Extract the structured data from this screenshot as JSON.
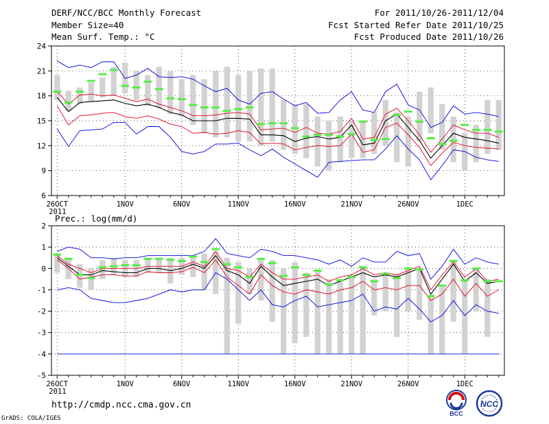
{
  "header": {
    "line1": "DERF/NCC/BCC Monthly Forecast",
    "line2": "Member Size=40",
    "line3": "Mean Surf. Temp.: °C",
    "right1": "For 2011/10/26-2011/12/04",
    "right2": "Fcst Started Refer Date 2011/10/25",
    "right3": "Fcst Produced Date 2011/10/26"
  },
  "footer": {
    "url": "http://cmdp.ncc.cma.gov.cn",
    "grads": "GrADS: COLA/IGES",
    "logo_bcc": "BCC",
    "logo_ncc": "NCC"
  },
  "colors": {
    "mean": "#000000",
    "spread": "#e0001c",
    "extreme": "#0000dd",
    "bar": "#d2d2d2",
    "marker": "#55ee44",
    "grid": "#000000"
  },
  "chart_data": [
    {
      "type": "ensemble",
      "title": "Mean Surf. Temp.: °C",
      "x_labels": [
        "26OCT\n2011",
        "1NOV",
        "6NOV",
        "11NOV",
        "16NOV",
        "21NOV",
        "26NOV",
        "1DEC"
      ],
      "x_label_days": [
        0,
        6,
        11,
        16,
        21,
        26,
        31,
        36
      ],
      "days": 40,
      "ylim": [
        6,
        24
      ],
      "yticks": [
        6,
        9,
        12,
        15,
        18,
        21,
        24
      ],
      "bars": [
        [
          17.5,
          20.5
        ],
        [
          16.2,
          18.6
        ],
        [
          17.0,
          19.0
        ],
        [
          17.3,
          19.6
        ],
        [
          17.8,
          20.2
        ],
        [
          18.0,
          21.5
        ],
        [
          18.3,
          22.0
        ],
        [
          17.5,
          21.0
        ],
        [
          16.8,
          20.5
        ],
        [
          16.5,
          21.5
        ],
        [
          15.8,
          21.0
        ],
        [
          15.5,
          20.0
        ],
        [
          14.5,
          20.5
        ],
        [
          13.5,
          20.0
        ],
        [
          13.0,
          21.0
        ],
        [
          13.0,
          21.5
        ],
        [
          12.5,
          20.5
        ],
        [
          12.5,
          21.0
        ],
        [
          12.0,
          21.3
        ],
        [
          12.5,
          21.3
        ],
        [
          11.5,
          17.5
        ],
        [
          11.0,
          17.0
        ],
        [
          10.5,
          17.0
        ],
        [
          9.5,
          15.5
        ],
        [
          9.0,
          15.0
        ],
        [
          10.0,
          15.5
        ],
        [
          10.5,
          15.0
        ],
        [
          10.5,
          15.0
        ],
        [
          11.0,
          16.0
        ],
        [
          12.0,
          17.5
        ],
        [
          10.0,
          16.0
        ],
        [
          9.5,
          15.5
        ],
        [
          12.5,
          18.5
        ],
        [
          13.5,
          19.0
        ],
        [
          11.5,
          17.0
        ],
        [
          10.0,
          15.5
        ],
        [
          9.0,
          13.5
        ],
        [
          10.0,
          14.5
        ],
        [
          11.0,
          17.5
        ],
        [
          11.5,
          17.5
        ]
      ],
      "markers": [
        18.5,
        17.2,
        18.5,
        19.8,
        20.6,
        21.1,
        19.2,
        19.0,
        19.7,
        18.8,
        17.7,
        17.6,
        16.9,
        16.6,
        16.6,
        16.2,
        16.4,
        16.6,
        14.6,
        14.7,
        14.7,
        14.1,
        13.1,
        13.3,
        13.3,
        13.1,
        13.4,
        14.9,
        12.7,
        12.8,
        15.7,
        16.1,
        14.9,
        12.9,
        12.2,
        12.6,
        14.5,
        13.9,
        13.9,
        13.7
      ],
      "series": [
        {
          "name": "ensemble mean",
          "color": "#000000",
          "values": [
            17.8,
            16.1,
            17.2,
            17.3,
            17.4,
            17.5,
            17.1,
            16.8,
            17.0,
            16.6,
            16.0,
            15.7,
            15.0,
            15.0,
            15.0,
            15.3,
            15.3,
            15.2,
            13.3,
            13.3,
            13.2,
            12.5,
            12.9,
            13.1,
            12.8,
            13.0,
            14.5,
            12.1,
            12.3,
            15.0,
            15.8,
            14.2,
            12.6,
            10.5,
            12.0,
            13.5,
            13.0,
            12.8,
            12.6,
            12.3
          ]
        },
        {
          "name": "upper spread",
          "color": "#e0001c",
          "values": [
            18.5,
            17.0,
            18.1,
            18.2,
            18.0,
            18.1,
            17.7,
            17.3,
            17.6,
            17.0,
            16.6,
            16.2,
            15.6,
            15.6,
            15.7,
            15.9,
            16.0,
            15.8,
            13.9,
            14.0,
            14.1,
            13.6,
            14.2,
            13.5,
            13.4,
            13.7,
            15.3,
            12.8,
            13.0,
            15.8,
            16.5,
            15.0,
            13.3,
            11.2,
            12.8,
            14.5,
            13.9,
            13.5,
            13.5,
            13.0
          ]
        },
        {
          "name": "lower spread",
          "color": "#e0001c",
          "values": [
            16.8,
            14.5,
            15.6,
            15.7,
            15.9,
            16.0,
            15.5,
            15.3,
            15.6,
            15.2,
            14.6,
            14.3,
            13.5,
            13.6,
            13.4,
            13.5,
            13.8,
            13.6,
            12.2,
            12.3,
            12.2,
            11.5,
            11.8,
            12.0,
            11.9,
            12.0,
            13.4,
            11.2,
            11.5,
            14.2,
            14.7,
            13.3,
            11.8,
            9.6,
            11.1,
            12.4,
            12.0,
            11.8,
            11.7,
            11.6
          ]
        },
        {
          "name": "maximum",
          "color": "#0000dd",
          "values": [
            22.2,
            21.4,
            21.7,
            21.4,
            22.1,
            22.1,
            20.1,
            20.5,
            21.3,
            20.3,
            20.2,
            20.3,
            20.0,
            19.2,
            18.5,
            18.9,
            17.5,
            17.0,
            18.3,
            18.5,
            17.6,
            16.8,
            17.2,
            15.9,
            16.0,
            17.5,
            18.5,
            16.3,
            16.0,
            18.5,
            19.4,
            16.9,
            16.3,
            14.2,
            14.8,
            16.8,
            15.8,
            16.0,
            15.8,
            15.5
          ]
        },
        {
          "name": "minimum",
          "color": "#0000dd",
          "values": [
            14.0,
            11.9,
            13.8,
            13.9,
            14.0,
            14.8,
            14.8,
            13.4,
            14.3,
            14.3,
            13.0,
            11.3,
            11.0,
            11.3,
            12.2,
            12.2,
            12.3,
            11.5,
            10.8,
            11.6,
            10.6,
            9.8,
            9.0,
            8.2,
            10.0,
            10.1,
            10.2,
            10.3,
            10.3,
            11.6,
            13.2,
            11.6,
            10.3,
            7.9,
            9.6,
            11.5,
            11.3,
            10.6,
            10.3,
            10.1
          ]
        }
      ]
    },
    {
      "type": "ensemble",
      "title": "Prec.: log(mm/d)",
      "x_labels": [
        "26OCT\n2011",
        "1NOV",
        "6NOV",
        "11NOV",
        "16NOV",
        "21NOV",
        "26NOV",
        "1DEC"
      ],
      "x_label_days": [
        0,
        6,
        11,
        16,
        21,
        26,
        31,
        36
      ],
      "days": 40,
      "ylim": [
        -5,
        2
      ],
      "yticks": [
        -5,
        -4,
        -3,
        -2,
        -1,
        0,
        1,
        2
      ],
      "bars": [
        [
          -0.2,
          0.6
        ],
        [
          -0.5,
          0.5
        ],
        [
          -0.9,
          0.2
        ],
        [
          -1.0,
          0.0
        ],
        [
          -0.5,
          0.4
        ],
        [
          -0.3,
          0.5
        ],
        [
          -0.4,
          0.4
        ],
        [
          -0.4,
          0.4
        ],
        [
          -0.2,
          0.5
        ],
        [
          -0.2,
          0.5
        ],
        [
          -0.7,
          0.5
        ],
        [
          -0.3,
          0.5
        ],
        [
          -0.4,
          0.5
        ],
        [
          -1.0,
          0.7
        ],
        [
          -1.2,
          0.8
        ],
        [
          -4.0,
          0.5
        ],
        [
          -2.6,
          0.3
        ],
        [
          -1.2,
          0.0
        ],
        [
          -1.5,
          0.4
        ],
        [
          -2.5,
          0.4
        ],
        [
          -4.0,
          0.0
        ],
        [
          -3.5,
          0.3
        ],
        [
          -3.2,
          -0.2
        ],
        [
          -4.0,
          -0.1
        ],
        [
          -4.0,
          -0.5
        ],
        [
          -4.0,
          -0.5
        ],
        [
          -4.0,
          -0.3
        ],
        [
          -4.0,
          0.1
        ],
        [
          -2.2,
          -0.5
        ],
        [
          -2.0,
          -0.2
        ],
        [
          -3.2,
          -0.3
        ],
        [
          -2.0,
          0.0
        ],
        [
          -2.4,
          -0.1
        ],
        [
          -4.0,
          -1.2
        ],
        [
          -4.0,
          -0.8
        ],
        [
          -2.5,
          0.4
        ],
        [
          -4.0,
          -0.5
        ],
        [
          -2.0,
          0.0
        ],
        [
          -3.2,
          -0.5
        ],
        [
          -4.0,
          -4.0
        ]
      ],
      "markers": [
        0.65,
        0.45,
        -0.3,
        -0.45,
        0.05,
        0.1,
        0.15,
        0.15,
        0.45,
        0.45,
        0.4,
        0.35,
        0.55,
        0.3,
        0.9,
        0.2,
        0.05,
        -0.4,
        0.45,
        0.25,
        -0.35,
        0.05,
        -0.3,
        -0.1,
        -0.75,
        -0.55,
        -0.4,
        0.05,
        -0.6,
        -0.25,
        -0.45,
        0.0,
        -0.05,
        -1.3,
        -0.8,
        0.35,
        -0.55,
        0.0,
        -0.6,
        -0.6
      ],
      "series": [
        {
          "name": "ensemble mean",
          "color": "#000000",
          "values": [
            0.5,
            0.1,
            -0.3,
            -0.3,
            -0.1,
            -0.15,
            -0.2,
            -0.2,
            0.0,
            0.0,
            -0.1,
            0.0,
            0.2,
            0.0,
            0.6,
            -0.1,
            -0.3,
            -0.7,
            0.1,
            -0.4,
            -0.8,
            -0.7,
            -0.6,
            -0.5,
            -0.8,
            -0.6,
            -0.4,
            -0.2,
            -0.4,
            -0.3,
            -0.4,
            -0.2,
            0.0,
            -1.2,
            -0.5,
            0.2,
            -0.6,
            -0.2,
            -0.7,
            -0.6
          ]
        },
        {
          "name": "upper spread",
          "color": "#e0001c",
          "values": [
            0.6,
            0.2,
            0.0,
            -0.2,
            0.0,
            0.0,
            0.0,
            0.0,
            0.1,
            0.1,
            0.1,
            0.1,
            0.3,
            0.1,
            0.8,
            0.0,
            -0.1,
            -0.4,
            0.2,
            -0.2,
            -0.5,
            -0.5,
            -0.4,
            -0.3,
            -0.6,
            -0.4,
            -0.3,
            0.0,
            -0.3,
            -0.2,
            -0.3,
            -0.1,
            0.1,
            -1.0,
            -0.3,
            0.3,
            -0.4,
            0.0,
            -0.6,
            -0.5
          ]
        },
        {
          "name": "lower spread",
          "color": "#e0001c",
          "values": [
            0.4,
            0.0,
            -0.5,
            -0.4,
            -0.3,
            -0.3,
            -0.35,
            -0.35,
            -0.15,
            -0.2,
            -0.2,
            -0.15,
            0.05,
            -0.2,
            0.4,
            -0.4,
            -0.8,
            -1.2,
            -0.3,
            -0.8,
            -1.1,
            -1.2,
            -1.0,
            -1.1,
            -1.2,
            -1.0,
            -0.9,
            -0.6,
            -1.0,
            -0.9,
            -1.0,
            -0.8,
            -0.8,
            -1.5,
            -1.2,
            -0.5,
            -1.3,
            -0.7,
            -1.3,
            -1.0
          ]
        },
        {
          "name": "maximum",
          "color": "#0000dd",
          "values": [
            0.8,
            1.0,
            0.9,
            0.5,
            0.5,
            0.45,
            0.5,
            0.5,
            0.6,
            0.6,
            0.6,
            0.6,
            0.6,
            0.8,
            1.4,
            0.7,
            0.6,
            0.5,
            0.9,
            0.8,
            0.6,
            0.6,
            0.5,
            0.4,
            0.2,
            0.4,
            0.1,
            0.5,
            0.3,
            0.3,
            0.8,
            0.6,
            0.7,
            -0.5,
            0.1,
            0.9,
            0.2,
            0.5,
            0.3,
            0.2
          ]
        },
        {
          "name": "minimum",
          "color": "#0000dd",
          "values": [
            -1.0,
            -0.9,
            -1.0,
            -1.4,
            -1.5,
            -1.6,
            -1.6,
            -1.5,
            -1.4,
            -1.2,
            -1.0,
            -1.1,
            -1.0,
            -1.0,
            -0.2,
            -0.5,
            -1.0,
            -1.5,
            -1.0,
            -1.7,
            -1.8,
            -1.5,
            -1.3,
            -1.8,
            -1.7,
            -1.6,
            -1.5,
            -1.2,
            -2.0,
            -1.8,
            -1.9,
            -1.4,
            -1.9,
            -2.5,
            -2.2,
            -1.5,
            -2.2,
            -1.7,
            -2.0,
            -2.1
          ]
        },
        {
          "name": "floor",
          "color": "#0000dd",
          "values": [
            -4,
            -4,
            -4,
            -4,
            -4,
            -4,
            -4,
            -4,
            -4,
            -4,
            -4,
            -4,
            -4,
            -4,
            -4,
            -4,
            -4,
            -4,
            -4,
            -4,
            -4,
            -4,
            -4,
            -4,
            -4,
            -4,
            -4,
            -4,
            -4,
            -4,
            -4,
            -4,
            -4,
            -4,
            -4,
            -4,
            -4,
            -4,
            -4,
            -4
          ]
        }
      ]
    }
  ]
}
